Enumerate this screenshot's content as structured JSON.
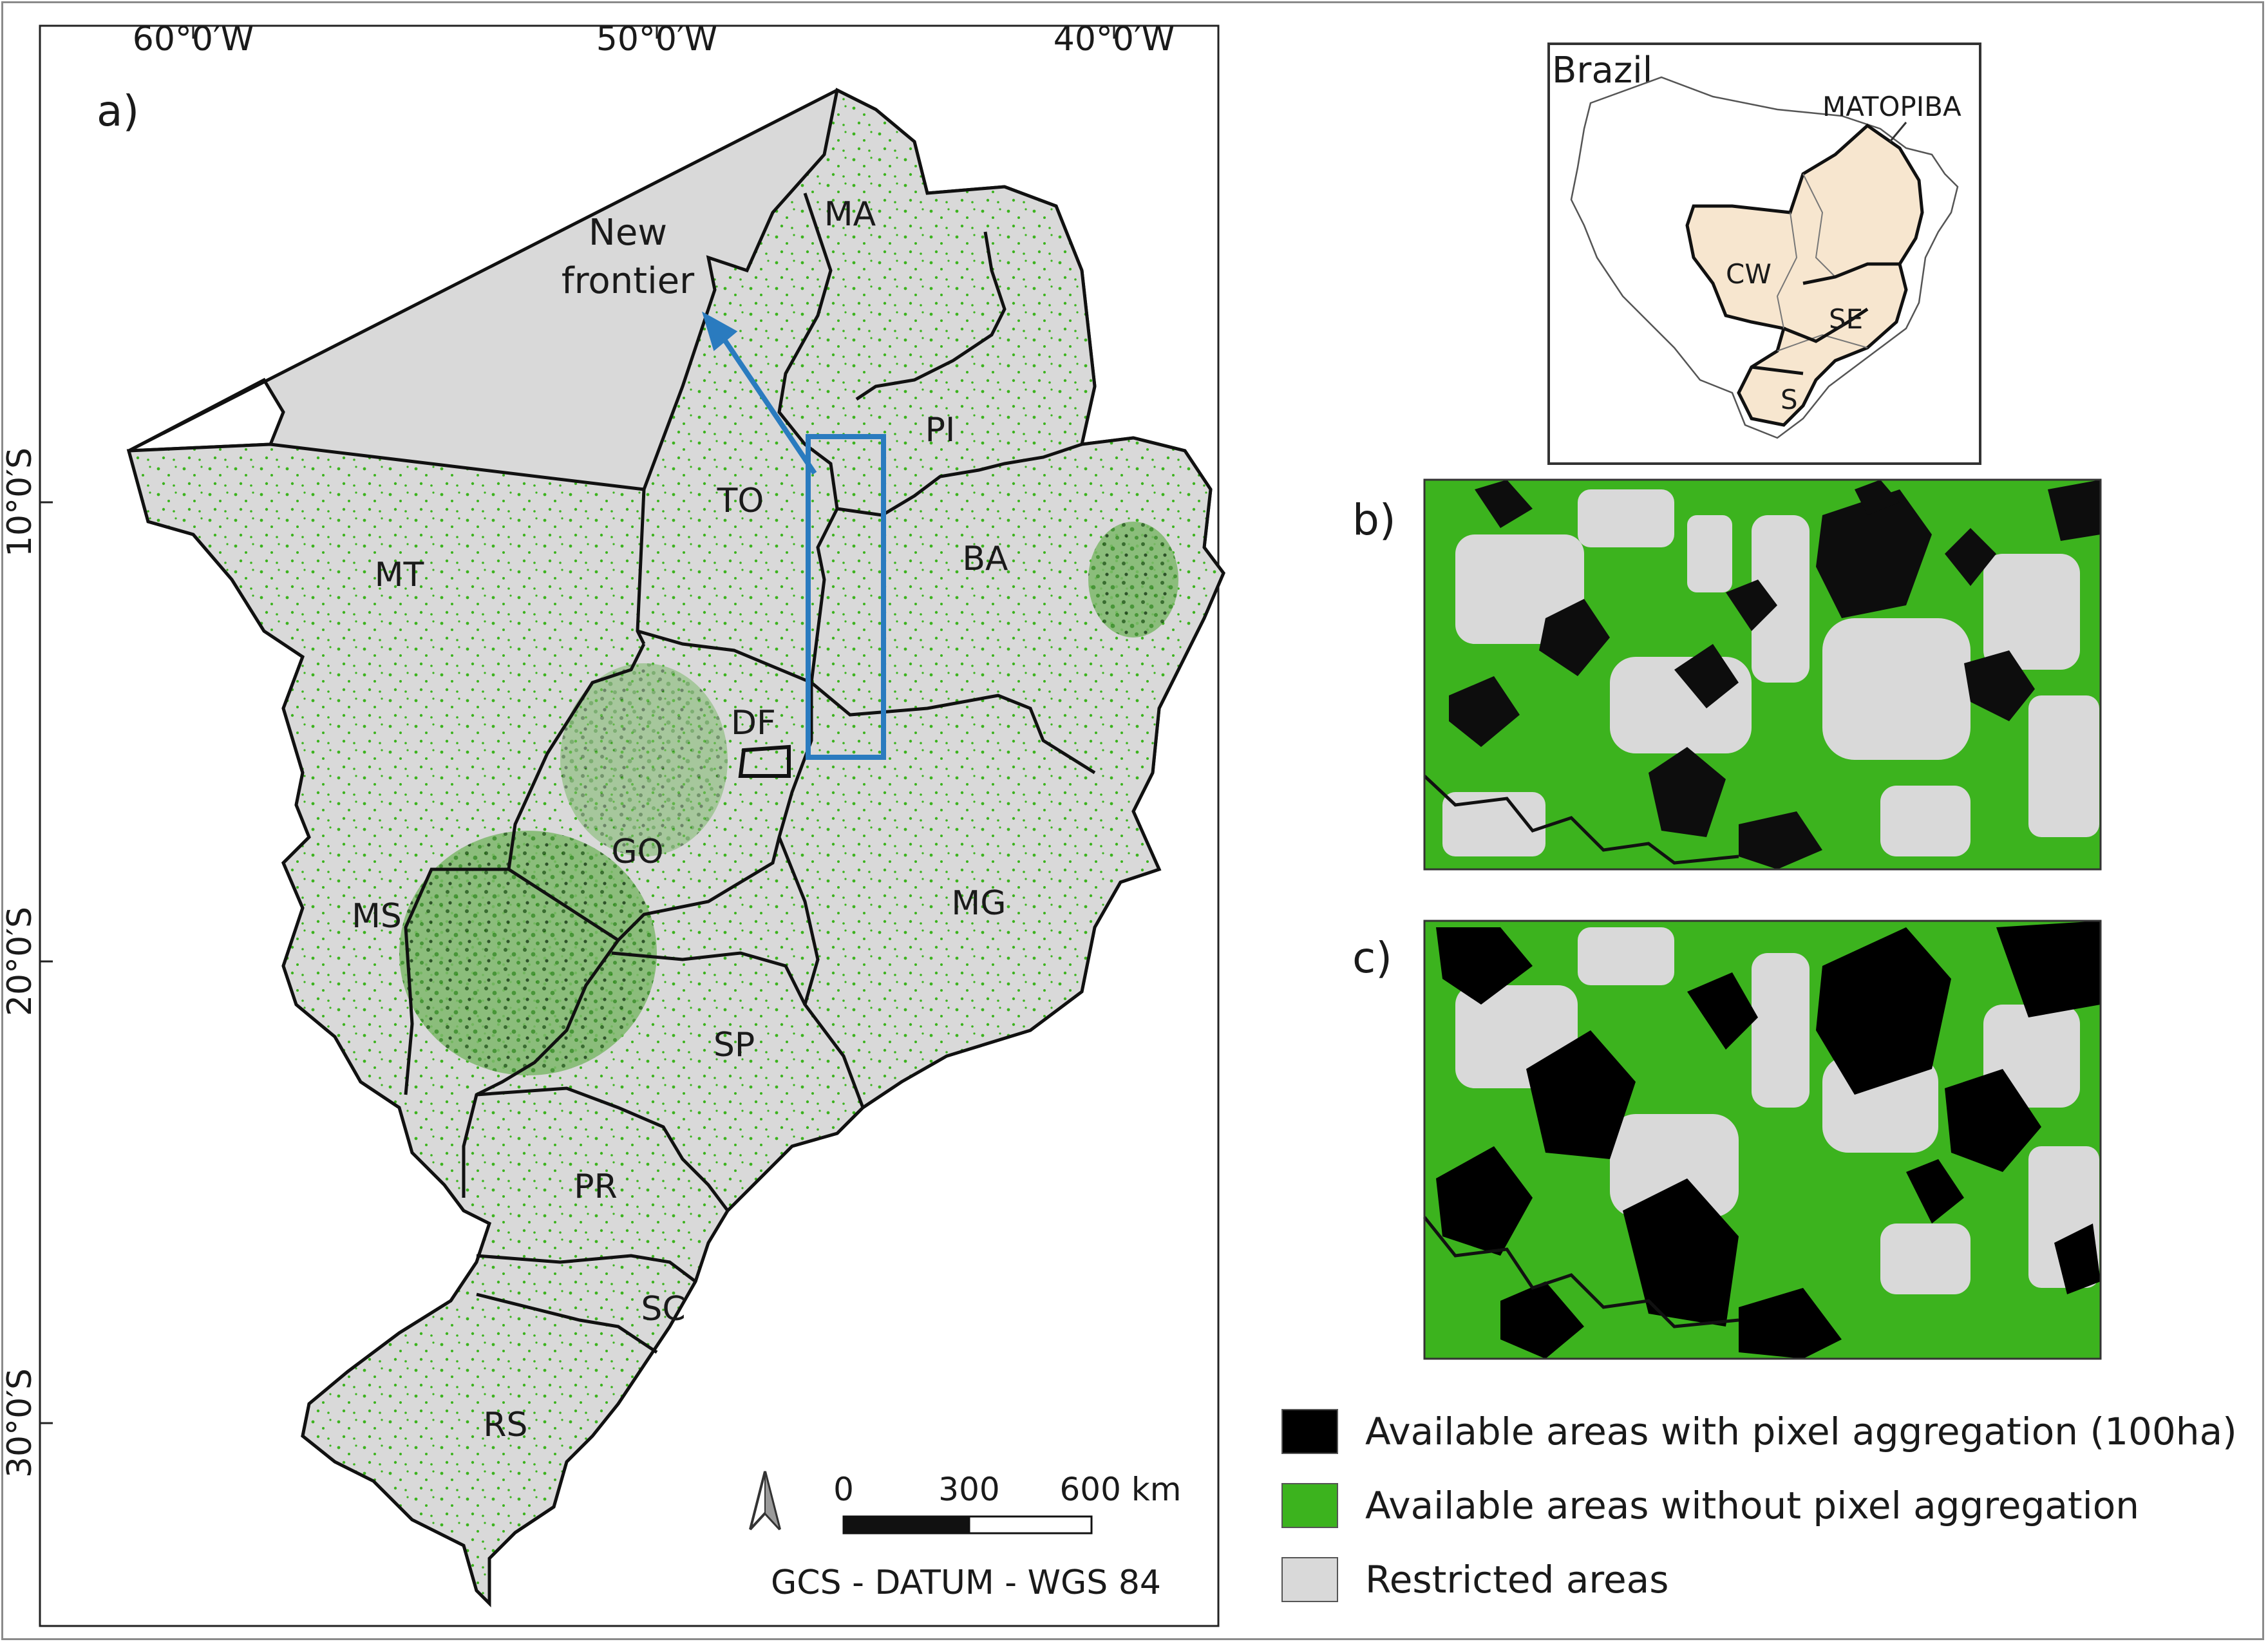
{
  "panels": {
    "a": "a)",
    "b": "b)",
    "c": "c)"
  },
  "longitude_labels": [
    "60°0′W",
    "50°0′W",
    "40°0′W"
  ],
  "latitude_labels": [
    "10°0′S",
    "20°0′S",
    "30°0′S"
  ],
  "state_labels": [
    "MA",
    "PI",
    "TO",
    "BA",
    "MT",
    "DF",
    "GO",
    "MS",
    "MG",
    "SP",
    "PR",
    "SC",
    "RS"
  ],
  "annotation": "New frontier",
  "annotation_lines": [
    "New",
    "frontier"
  ],
  "scale_bar": {
    "ticks": [
      "0",
      "300",
      "600 km"
    ]
  },
  "datum_text": "GCS - DATUM - WGS 84",
  "inset": {
    "country": "Brazil",
    "region_labels": [
      "MATOPIBA",
      "CW",
      "SE",
      "S"
    ]
  },
  "legend": [
    {
      "label": "Available areas with pixel aggregation (100ha)",
      "color": "#000000"
    },
    {
      "label": "Available areas without pixel aggregation",
      "color": "#3cb31e"
    },
    {
      "label": "Restricted areas",
      "color": "#d9d9d9"
    }
  ],
  "colors": {
    "restricted": "#d9d9d9",
    "available_no_aggregation": "#3cb31e",
    "available_aggregation": "#000000",
    "study_box": "#2a7bbf",
    "inset_fill": "#f7e6cf"
  }
}
